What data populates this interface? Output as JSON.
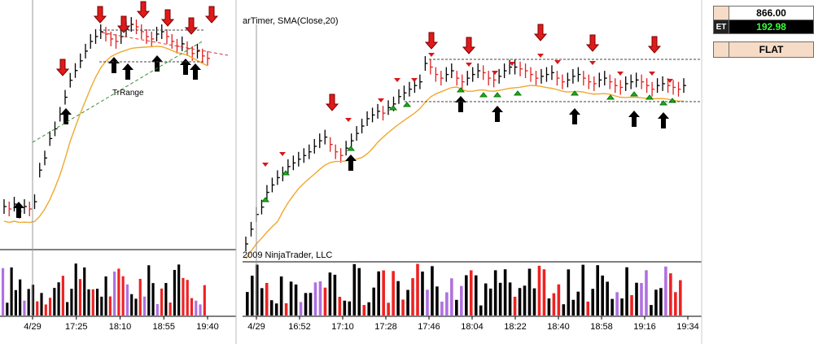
{
  "left_chart": {
    "watermark": "TrRange",
    "time_labels": [
      "4/29",
      "17:25",
      "18:10",
      "18:55",
      "19:40"
    ],
    "sma_color": "#f0a830"
  },
  "right_chart": {
    "title": "arTimer, SMA(Close,20)",
    "copyright": "2009 NinjaTrader, LLC",
    "time_labels": [
      "4/29",
      "16:52",
      "17:10",
      "17:28",
      "17:46",
      "18:04",
      "18:22",
      "18:40",
      "18:58",
      "19:16",
      "19:34"
    ]
  },
  "side_panel": {
    "price": "866.00",
    "pnl_label_fragment": "ET",
    "pnl": "192.98",
    "position": "FLAT",
    "colors": {
      "pnl_bg": "#000000",
      "pnl_text": "#39ff39",
      "accent": "#f6dcc6"
    }
  },
  "chart_data": [
    {
      "type": "ohlc",
      "panel": "left",
      "xlabel": "",
      "ylabel": "",
      "x_ticks": [
        "4/29",
        "17:25",
        "18:10",
        "18:55",
        "19:40"
      ],
      "series": [
        {
          "name": "SMA(Close,20)",
          "color": "#f0a830"
        }
      ],
      "closes": [
        10,
        9,
        11,
        8,
        10,
        9,
        12,
        25,
        30,
        38,
        42,
        48,
        55,
        62,
        66,
        70,
        74,
        78,
        80,
        82,
        81,
        79,
        78,
        80,
        83,
        85,
        84,
        82,
        80,
        79,
        81,
        82,
        80,
        78,
        76,
        77,
        75,
        73,
        74,
        72,
        71
      ]
    },
    {
      "type": "ohlc",
      "panel": "right",
      "title": "arTimer, SMA(Close,20)",
      "x_ticks": [
        "4/29",
        "16:52",
        "17:10",
        "17:28",
        "17:46",
        "18:04",
        "18:22",
        "18:40",
        "18:58",
        "19:16",
        "19:34"
      ],
      "series": [
        {
          "name": "SMA(Close,20)",
          "color": "#f0a830"
        }
      ],
      "closes": [
        2,
        10,
        18,
        22,
        30,
        34,
        38,
        40,
        44,
        46,
        48,
        50,
        52,
        55,
        58,
        60,
        56,
        52,
        50,
        54,
        58,
        62,
        66,
        70,
        72,
        74,
        73,
        76,
        78,
        82,
        84,
        86,
        88,
        90,
        100,
        98,
        94,
        92,
        94,
        96,
        92,
        90,
        92,
        94,
        96,
        95,
        92,
        91,
        93,
        96,
        98,
        98,
        97,
        96,
        94,
        92,
        93,
        94,
        95,
        92,
        90,
        91,
        93,
        94,
        92,
        90,
        89,
        91,
        92,
        90,
        88,
        87,
        89,
        90,
        91,
        90,
        88,
        86,
        88,
        89,
        88,
        87,
        86,
        88
      ]
    }
  ]
}
